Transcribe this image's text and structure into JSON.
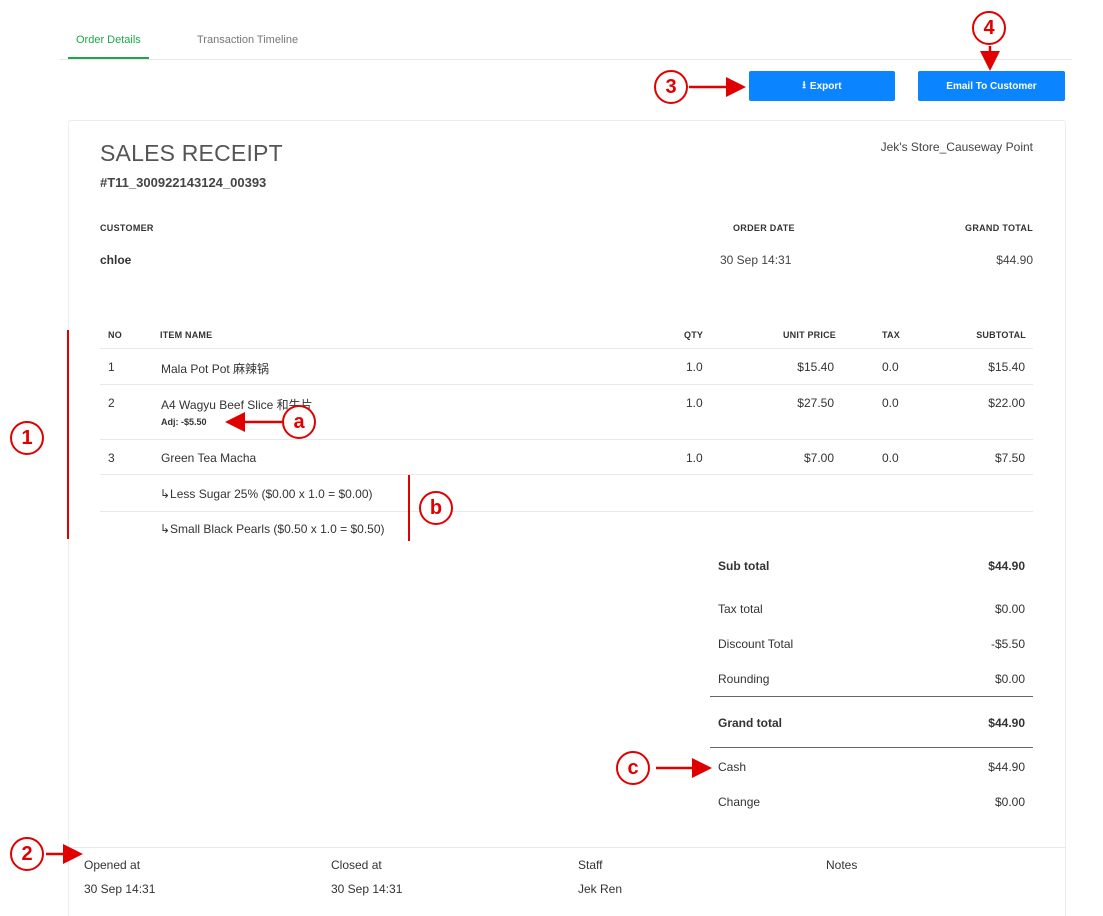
{
  "tabs": {
    "order_details": "Order Details",
    "transaction_timeline": "Transaction Timeline"
  },
  "buttons": {
    "export": "Export",
    "email": "Email To Customer"
  },
  "receipt": {
    "title": "SALES RECEIPT",
    "number": "#T11_300922143124_00393",
    "store": "Jek's Store_Causeway Point",
    "customer_label": "CUSTOMER",
    "customer": "chloe",
    "order_date_label": "ORDER DATE",
    "order_date": "30 Sep 14:31",
    "grand_total_label": "GRAND TOTAL",
    "grand_total": "$44.90"
  },
  "table": {
    "headers": {
      "no": "NO",
      "item": "ITEM NAME",
      "qty": "QTY",
      "unit_price": "UNIT PRICE",
      "tax": "TAX",
      "subtotal": "SUBTOTAL"
    },
    "rows": [
      {
        "no": "1",
        "name": "Mala Pot Pot 麻辣锅",
        "qty": "1.0",
        "unit_price": "$15.40",
        "tax": "0.0",
        "subtotal": "$15.40"
      },
      {
        "no": "2",
        "name": "A4 Wagyu Beef Slice 和牛片",
        "adj": "Adj: -$5.50",
        "qty": "1.0",
        "unit_price": "$27.50",
        "tax": "0.0",
        "subtotal": "$22.00"
      },
      {
        "no": "3",
        "name": "Green Tea Macha",
        "qty": "1.0",
        "unit_price": "$7.00",
        "tax": "0.0",
        "subtotal": "$7.50"
      }
    ],
    "modifiers": [
      "↳Less Sugar 25% ($0.00 x 1.0 = $0.00)",
      "↳Small Black Pearls ($0.50 x 1.0 = $0.50)"
    ]
  },
  "totals": {
    "sub_total_label": "Sub total",
    "sub_total": "$44.90",
    "tax_total_label": "Tax total",
    "tax_total": "$0.00",
    "discount_label": "Discount Total",
    "discount": "-$5.50",
    "rounding_label": "Rounding",
    "rounding": "$0.00",
    "grand_total_label": "Grand total",
    "grand_total": "$44.90",
    "cash_label": "Cash",
    "cash": "$44.90",
    "change_label": "Change",
    "change": "$0.00"
  },
  "footer": {
    "opened_label": "Opened at",
    "opened": "30 Sep 14:31",
    "closed_label": "Closed at",
    "closed": "30 Sep 14:31",
    "staff_label": "Staff",
    "staff": "Jek Ren",
    "notes_label": "Notes",
    "notes": ""
  },
  "annotations": {
    "one": "1",
    "two": "2",
    "three": "3",
    "four": "4",
    "a": "a",
    "b": "b",
    "c": "c"
  },
  "colors": {
    "accent_green": "#1fa64a",
    "button_blue": "#0a84ff",
    "annotation_red": "#e00000"
  }
}
